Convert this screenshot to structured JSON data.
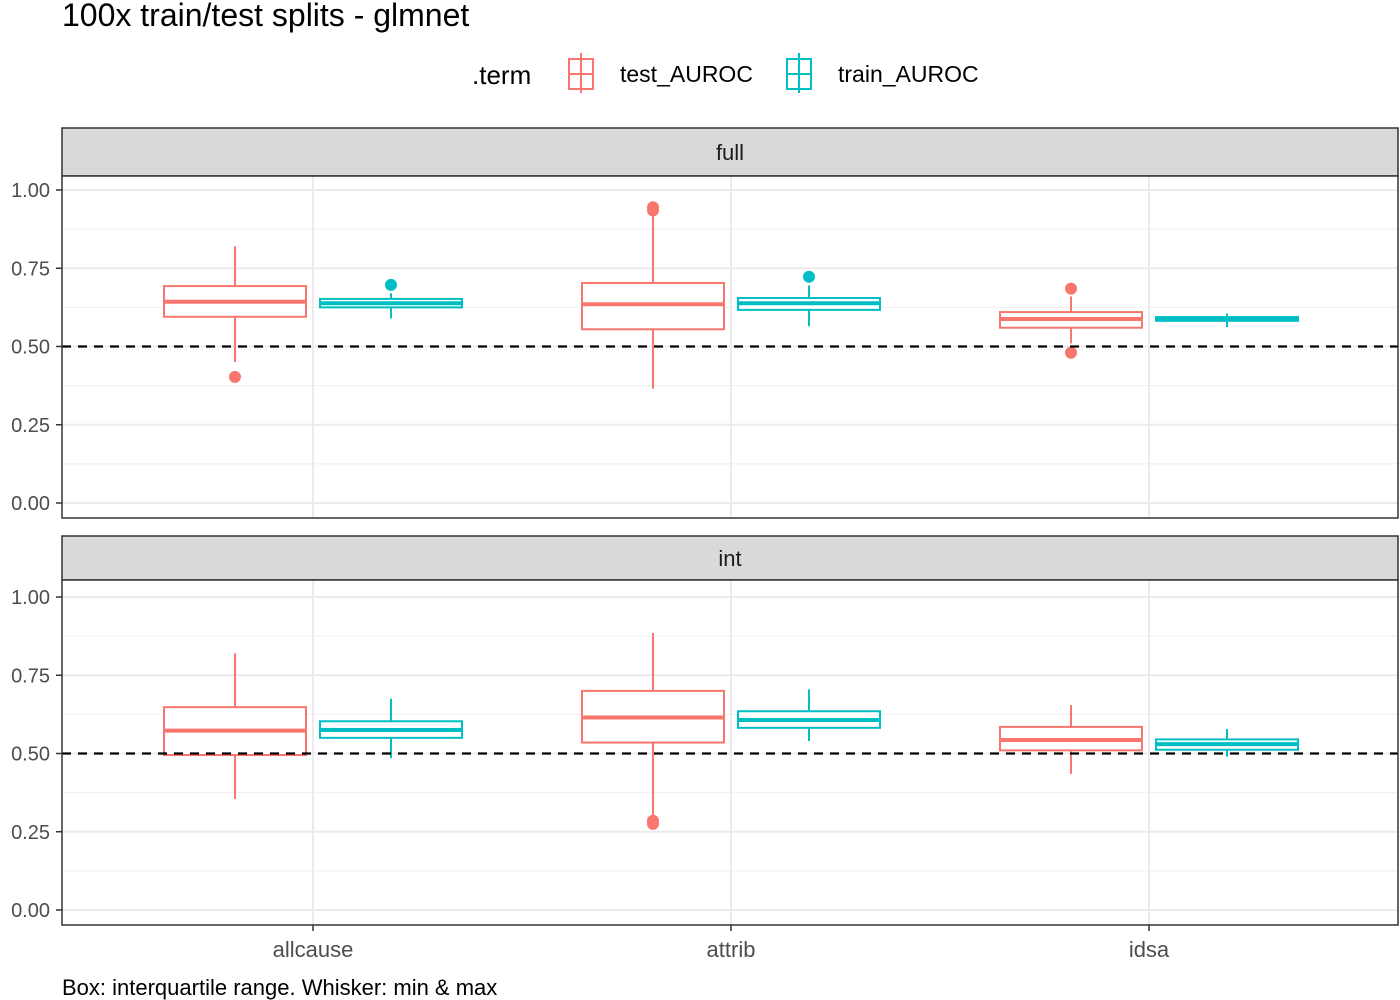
{
  "chart_data": {
    "type": "boxplot",
    "title": "100x train/test splits - glmnet",
    "caption": "Box: interquartile range. Whisker: min & max",
    "legend": {
      "title": ".term",
      "position": "top",
      "entries": [
        {
          "name": "test_AUROC",
          "color": "#F8766D"
        },
        {
          "name": "train_AUROC",
          "color": "#00BFC4"
        }
      ]
    },
    "categories": [
      "allcause",
      "attrib",
      "idsa"
    ],
    "y_ticks": [
      "0.00",
      "0.25",
      "0.50",
      "0.75",
      "1.00"
    ],
    "ylim": [
      0,
      1
    ],
    "reference_line": 0.5,
    "grid": true,
    "facets": [
      {
        "label": "full",
        "series": [
          {
            "name": "test_AUROC",
            "boxes": [
              {
                "category": "allcause",
                "min": 0.45,
                "q1": 0.595,
                "median": 0.643,
                "q3": 0.693,
                "max": 0.82,
                "outliers": [
                  0.403
                ]
              },
              {
                "category": "attrib",
                "min": 0.365,
                "q1": 0.555,
                "median": 0.635,
                "q3": 0.703,
                "max": 0.93,
                "outliers": [
                  0.935,
                  0.945
                ]
              },
              {
                "category": "idsa",
                "min": 0.51,
                "q1": 0.56,
                "median": 0.588,
                "q3": 0.61,
                "max": 0.66,
                "outliers": [
                  0.48,
                  0.685
                ]
              }
            ]
          },
          {
            "name": "train_AUROC",
            "boxes": [
              {
                "category": "allcause",
                "min": 0.59,
                "q1": 0.625,
                "median": 0.638,
                "q3": 0.652,
                "max": 0.67,
                "outliers": [
                  0.697
                ]
              },
              {
                "category": "attrib",
                "min": 0.565,
                "q1": 0.617,
                "median": 0.638,
                "q3": 0.655,
                "max": 0.695,
                "outliers": [
                  0.723
                ]
              },
              {
                "category": "idsa",
                "min": 0.562,
                "q1": 0.582,
                "median": 0.588,
                "q3": 0.594,
                "max": 0.605,
                "outliers": []
              }
            ]
          }
        ]
      },
      {
        "label": "int",
        "series": [
          {
            "name": "test_AUROC",
            "boxes": [
              {
                "category": "allcause",
                "min": 0.355,
                "q1": 0.495,
                "median": 0.573,
                "q3": 0.648,
                "max": 0.82,
                "outliers": []
              },
              {
                "category": "attrib",
                "min": 0.3,
                "q1": 0.535,
                "median": 0.615,
                "q3": 0.7,
                "max": 0.885,
                "outliers": [
                  0.275,
                  0.285
                ]
              },
              {
                "category": "idsa",
                "min": 0.435,
                "q1": 0.51,
                "median": 0.543,
                "q3": 0.585,
                "max": 0.655,
                "outliers": []
              }
            ]
          },
          {
            "name": "train_AUROC",
            "boxes": [
              {
                "category": "allcause",
                "min": 0.485,
                "q1": 0.55,
                "median": 0.575,
                "q3": 0.603,
                "max": 0.675,
                "outliers": []
              },
              {
                "category": "attrib",
                "min": 0.54,
                "q1": 0.582,
                "median": 0.607,
                "q3": 0.635,
                "max": 0.705,
                "outliers": []
              },
              {
                "category": "idsa",
                "min": 0.49,
                "q1": 0.512,
                "median": 0.53,
                "q3": 0.545,
                "max": 0.578,
                "outliers": []
              }
            ]
          }
        ]
      }
    ]
  }
}
